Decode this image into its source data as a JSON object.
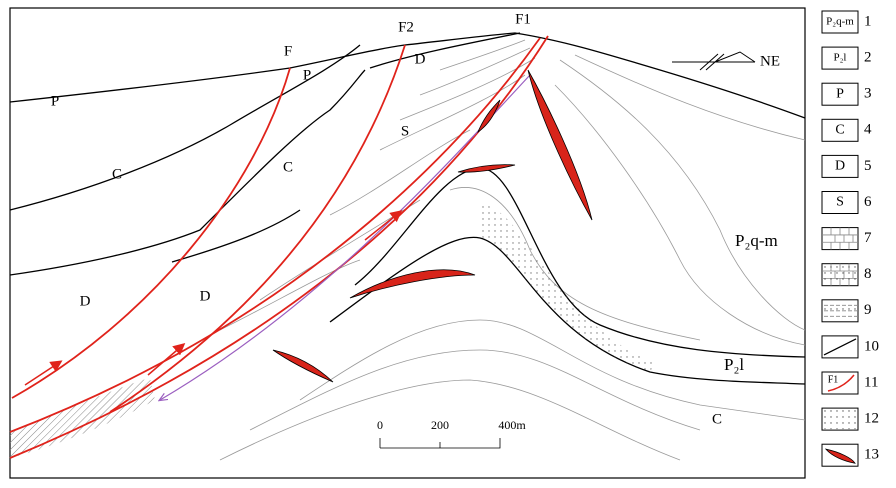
{
  "section": {
    "labels": [
      "P",
      "C",
      "D",
      "P",
      "C",
      "D",
      "D",
      "S",
      "P₂q-m",
      "P₂l",
      "C"
    ],
    "faults": [
      "F",
      "F2",
      "F1"
    ],
    "orientation": "NE"
  },
  "scale": {
    "ticks": [
      "0",
      "200",
      "400m"
    ]
  },
  "legend": [
    {
      "number": "1",
      "symbol": "P₂q-m"
    },
    {
      "number": "2",
      "symbol": "P₂l"
    },
    {
      "number": "3",
      "symbol": "P"
    },
    {
      "number": "4",
      "symbol": "C"
    },
    {
      "number": "5",
      "symbol": "D"
    },
    {
      "number": "6",
      "symbol": "S"
    },
    {
      "number": "7"
    },
    {
      "number": "8"
    },
    {
      "number": "9"
    },
    {
      "number": "10"
    },
    {
      "number": "11",
      "symbol": "F1"
    },
    {
      "number": "12"
    },
    {
      "number": "13"
    }
  ]
}
